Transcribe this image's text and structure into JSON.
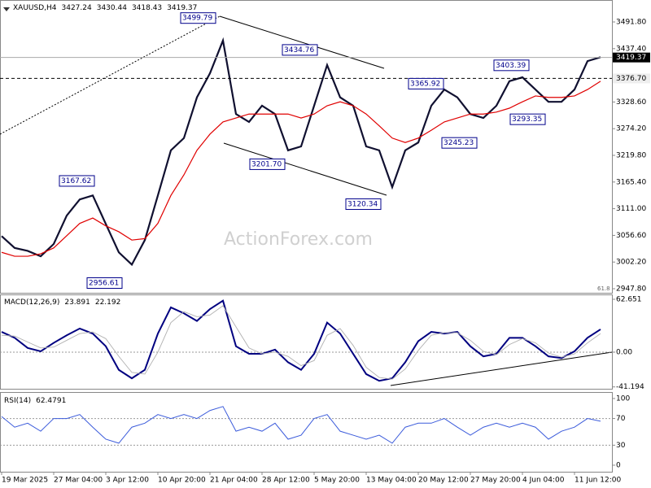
{
  "chart_data": [
    {
      "type": "line",
      "title": "XAUUSD,H4",
      "ohlc": [
        3427.24,
        3430.44,
        3418.43,
        3419.37
      ],
      "watermark": "ActionForex.com",
      "fib_label": "61.8",
      "ylim": [
        2939.5,
        3536.6
      ],
      "yticks": [
        {
          "value": 3491.8,
          "label": "3491.80"
        },
        {
          "value": 3437.4,
          "label": "3437.40"
        },
        {
          "value": 3328.6,
          "label": "3328.60"
        },
        {
          "value": 3274.2,
          "label": "3274.20"
        },
        {
          "value": 3219.8,
          "label": "3219.80"
        },
        {
          "value": 3165.4,
          "label": "3165.40"
        },
        {
          "value": 3111,
          "label": "3111.00"
        },
        {
          "value": 3056.6,
          "label": "3056.60"
        },
        {
          "value": 3002.2,
          "label": "3002.20"
        },
        {
          "value": 2947.8,
          "label": "2947.80"
        }
      ],
      "last_price": 3419.37,
      "level": {
        "value": 3376.7,
        "label": "3376.70"
      },
      "annotations": [
        3499.79,
        3434.76,
        3403.39,
        3365.92,
        3293.35,
        3245.23,
        {
          "value": 3201.7,
          "label": "3201.70"
        },
        3167.62,
        3120.34,
        2956.61
      ],
      "series": [
        {
          "color": "#101030",
          "values": [
            3055,
            3031,
            3025,
            3014,
            3039,
            3097,
            3130,
            3138,
            3080,
            3022,
            2997,
            3047,
            3138,
            3230,
            3255,
            3338,
            3387,
            3454,
            3304,
            3288,
            3321,
            3304,
            3230,
            3238,
            3321,
            3404,
            3338,
            3321,
            3238,
            3230,
            3155,
            3230,
            3246,
            3321,
            3354,
            3338,
            3304,
            3296,
            3321,
            3371,
            3379,
            3354,
            3329,
            3329,
            3354,
            3412,
            3420
          ]
        },
        {
          "color": "#e00000",
          "values": [
            3022,
            3014,
            3014,
            3019,
            3031,
            3056,
            3081,
            3092,
            3076,
            3064,
            3047,
            3050,
            3081,
            3138,
            3180,
            3230,
            3263,
            3288,
            3296,
            3304,
            3304,
            3304,
            3304,
            3296,
            3304,
            3321,
            3329,
            3321,
            3304,
            3280,
            3255,
            3246,
            3255,
            3271,
            3288,
            3296,
            3304,
            3304,
            3308,
            3316,
            3329,
            3341,
            3338,
            3338,
            3341,
            3354,
            3371
          ]
        }
      ]
    },
    {
      "type": "line",
      "title": "MACD(12,26,9)",
      "readings": [
        23.891,
        22.192
      ],
      "ylim": [
        -43.4,
        68.4
      ],
      "yticks": [
        62.651,
        {
          "value": 0,
          "label": "0.00"
        },
        -41.194
      ],
      "series": [
        {
          "color": "#000080",
          "values": [
            24,
            17,
            5,
            1,
            11,
            20,
            28,
            22,
            7,
            -21,
            -31,
            -21,
            22,
            53,
            46,
            37,
            51,
            61,
            7,
            -2,
            -2,
            3,
            -12,
            -21,
            -2,
            35,
            22,
            -2,
            -26,
            -34,
            -31,
            -12,
            13,
            24,
            22,
            24,
            7,
            -5,
            -2,
            17,
            17,
            7,
            -5,
            -7,
            1,
            17,
            27
          ]
        },
        {
          "color": "#b0b0b0",
          "values": [
            20,
            19,
            12,
            5,
            6,
            14,
            22,
            24,
            16,
            -5,
            -24,
            -26,
            0,
            35,
            48,
            42,
            44,
            55,
            30,
            5,
            -2,
            0,
            -5,
            -16,
            -10,
            20,
            28,
            8,
            -18,
            -30,
            -32,
            -20,
            2,
            20,
            23,
            23,
            14,
            1,
            -3,
            9,
            16,
            11,
            -1,
            -6,
            -2,
            11,
            22
          ]
        }
      ]
    },
    {
      "type": "line",
      "title": "RSI(14)",
      "readings": [
        62.4791
      ],
      "ylim": [
        -9.8,
        108.5
      ],
      "yticks": [
        100,
        70,
        30,
        0
      ],
      "categories": [
        "19 Mar 2025",
        null,
        null,
        null,
        "27 Mar 04:00",
        null,
        null,
        null,
        "3 Apr 12:00",
        null,
        null,
        null,
        "10 Apr 20:00",
        null,
        null,
        null,
        "21 Apr 04:00",
        null,
        null,
        null,
        "28 Apr 12:00",
        null,
        null,
        null,
        "5 May 20:00",
        null,
        null,
        null,
        "13 May 04:00",
        null,
        null,
        null,
        "20 May 12:00",
        null,
        null,
        null,
        "27 May 20:00",
        null,
        null,
        null,
        "4 Jun 04:00",
        null,
        null,
        null,
        "11 Jun 12:00",
        null,
        null
      ],
      "series": [
        {
          "color": "#3b5bdb",
          "values": [
            73,
            57,
            63,
            51,
            70,
            70,
            76,
            57,
            39,
            33,
            57,
            63,
            76,
            70,
            76,
            70,
            82,
            88,
            51,
            57,
            51,
            63,
            39,
            45,
            70,
            76,
            51,
            45,
            39,
            45,
            33,
            57,
            63,
            63,
            70,
            57,
            45,
            57,
            63,
            57,
            63,
            57,
            39,
            51,
            57,
            70,
            66
          ]
        }
      ]
    }
  ]
}
